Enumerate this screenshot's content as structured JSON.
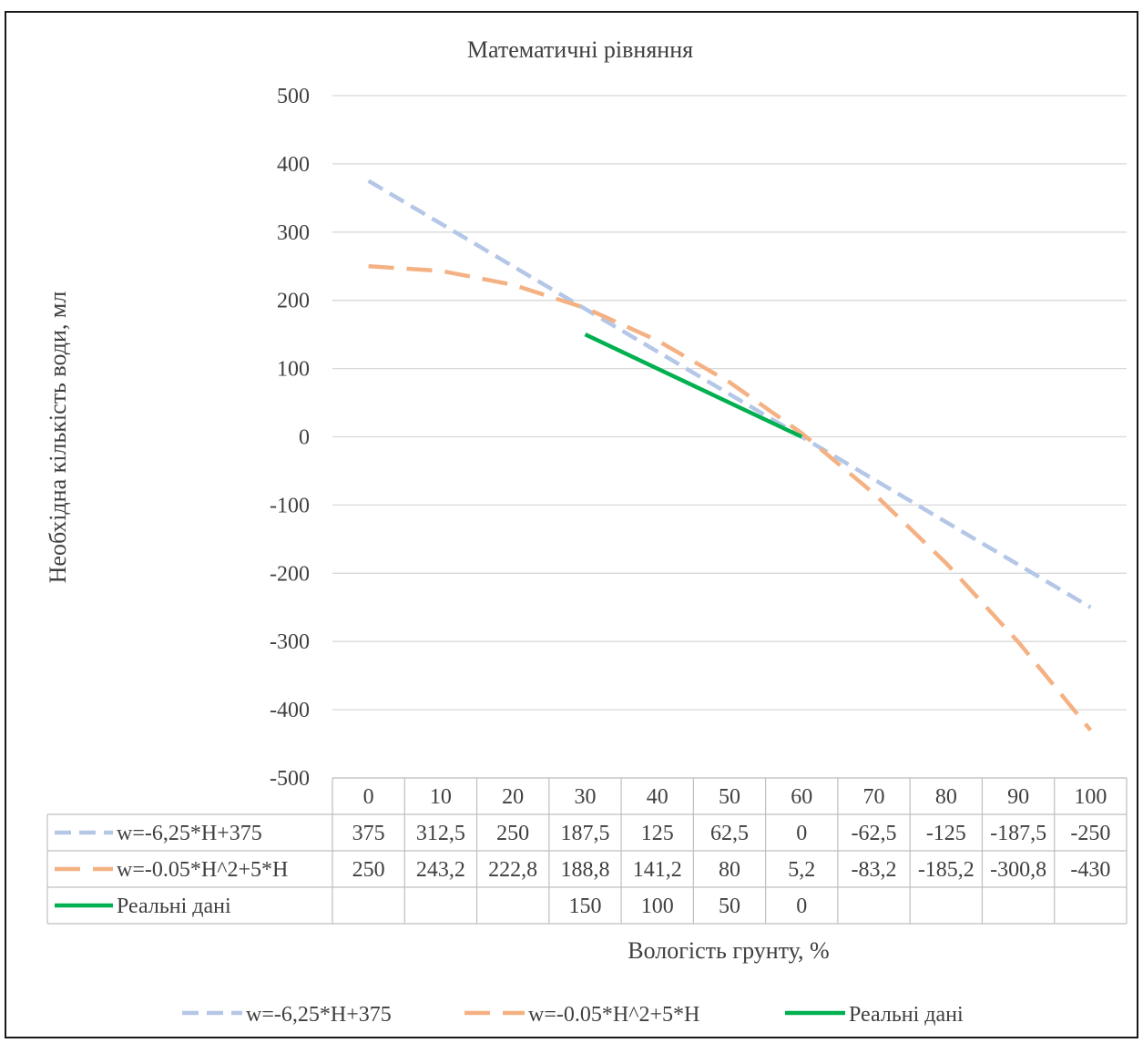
{
  "chart_data": {
    "type": "line",
    "title": "Математичні рівняння",
    "xlabel": "Вологість грунту, %",
    "ylabel": "Необхідна кількість води, мл",
    "categories": [
      "0",
      "10",
      "20",
      "30",
      "40",
      "50",
      "60",
      "70",
      "80",
      "90",
      "100"
    ],
    "ylim": [
      -500,
      500
    ],
    "yticks": [
      "500",
      "400",
      "300",
      "200",
      "100",
      "0",
      "-100",
      "-200",
      "-300",
      "-400",
      "-500"
    ],
    "grid": true,
    "legend_position": "bottom",
    "data_table": true,
    "series": [
      {
        "name": "w=-6,25*H+375",
        "color": "#b4c7e7",
        "dash": "dashed",
        "values": [
          375,
          312.5,
          250,
          187.5,
          125,
          62.5,
          0,
          -62.5,
          -125,
          -187.5,
          -250
        ],
        "labels": [
          "375",
          "312,5",
          "250",
          "187,5",
          "125",
          "62,5",
          "0",
          "-62,5",
          "-125",
          "-187,5",
          "-250"
        ]
      },
      {
        "name": "w=-0.05*H^2+5*H",
        "color": "#f4b183",
        "dash": "long-dashed",
        "values": [
          250,
          243.2,
          222.8,
          188.8,
          141.2,
          80,
          5.2,
          -83.2,
          -185.2,
          -300.8,
          -430
        ],
        "labels": [
          "250",
          "243,2",
          "222,8",
          "188,8",
          "141,2",
          "80",
          "5,2",
          "-83,2",
          "-185,2",
          "-300,8",
          "-430"
        ]
      },
      {
        "name": "Реальні дані",
        "color": "#00b050",
        "dash": "solid",
        "values": [
          null,
          null,
          null,
          150,
          100,
          50,
          0,
          null,
          null,
          null,
          null
        ],
        "labels": [
          "",
          "",
          "",
          "150",
          "100",
          "50",
          "0",
          "",
          "",
          "",
          ""
        ]
      }
    ]
  }
}
